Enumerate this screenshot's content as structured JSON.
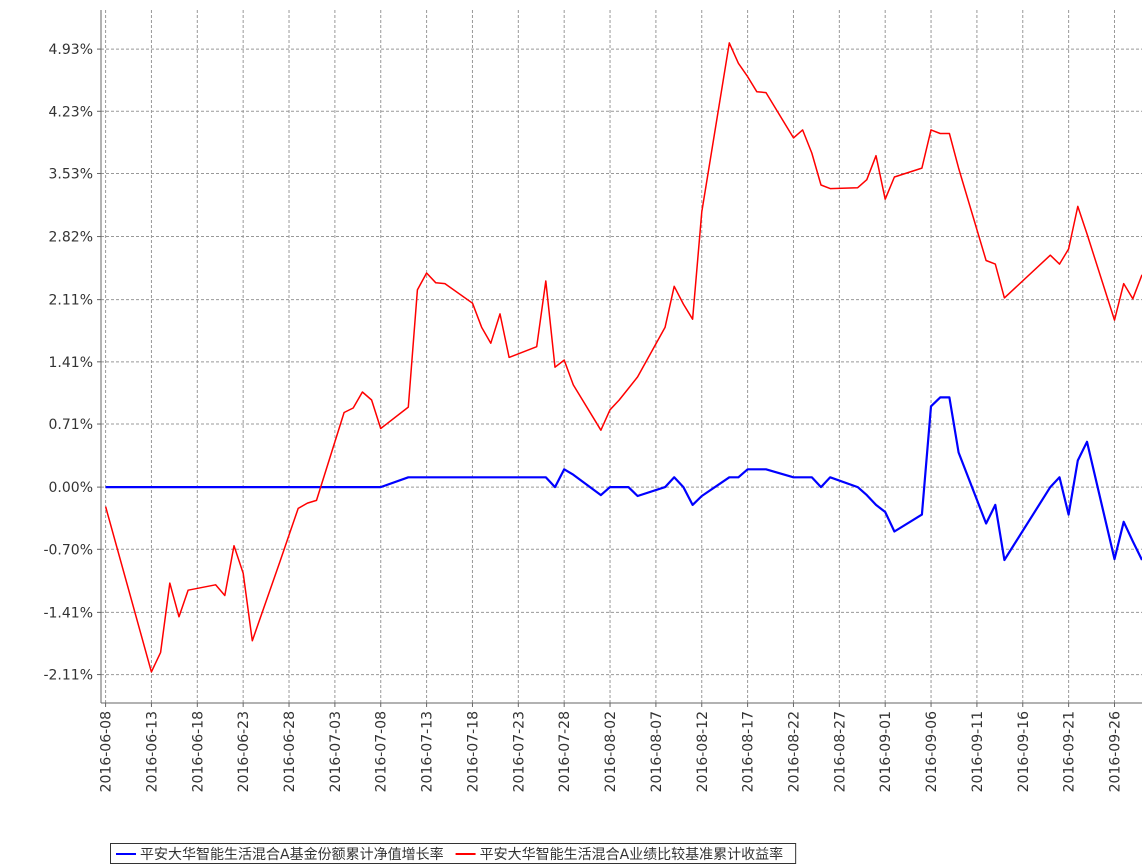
{
  "chart_data": {
    "type": "line",
    "x": [
      "2016-06-08",
      "2016-06-13",
      "2016-06-14",
      "2016-06-15",
      "2016-06-16",
      "2016-06-17",
      "2016-06-20",
      "2016-06-21",
      "2016-06-22",
      "2016-06-23",
      "2016-06-24",
      "2016-06-27",
      "2016-06-28",
      "2016-06-29",
      "2016-06-30",
      "2016-07-01",
      "2016-07-04",
      "2016-07-05",
      "2016-07-06",
      "2016-07-07",
      "2016-07-08",
      "2016-07-11",
      "2016-07-12",
      "2016-07-13",
      "2016-07-14",
      "2016-07-15",
      "2016-07-18",
      "2016-07-19",
      "2016-07-20",
      "2016-07-21",
      "2016-07-22",
      "2016-07-25",
      "2016-07-26",
      "2016-07-27",
      "2016-07-28",
      "2016-07-29",
      "2016-08-01",
      "2016-08-02",
      "2016-08-03",
      "2016-08-04",
      "2016-08-05",
      "2016-08-08",
      "2016-08-09",
      "2016-08-10",
      "2016-08-11",
      "2016-08-12",
      "2016-08-15",
      "2016-08-16",
      "2016-08-17",
      "2016-08-18",
      "2016-08-19",
      "2016-08-22",
      "2016-08-23",
      "2016-08-24",
      "2016-08-25",
      "2016-08-26",
      "2016-08-29",
      "2016-08-30",
      "2016-08-31",
      "2016-09-01",
      "2016-09-02",
      "2016-09-05",
      "2016-09-06",
      "2016-09-07",
      "2016-09-08",
      "2016-09-09",
      "2016-09-12",
      "2016-09-13",
      "2016-09-14",
      "2016-09-19",
      "2016-09-20",
      "2016-09-21",
      "2016-09-22",
      "2016-09-23",
      "2016-09-26",
      "2016-09-27",
      "2016-09-28",
      "2016-09-29"
    ],
    "series": [
      {
        "name": "平安大华智能生活混合A基金份额累计净值增长率",
        "color": "#0000ff",
        "values": [
          0,
          0,
          0,
          0,
          0,
          0,
          0,
          0,
          0,
          0,
          0,
          0,
          0,
          0,
          0,
          0,
          0,
          0,
          0,
          0,
          0,
          0.11,
          0.11,
          0.11,
          0.11,
          0.11,
          0.11,
          0.11,
          0.11,
          0.11,
          0.11,
          0.11,
          0.11,
          0,
          0.2,
          0.14,
          -0.09,
          0,
          0,
          0,
          -0.1,
          0,
          0.11,
          0,
          -0.2,
          -0.1,
          0.11,
          0.11,
          0.2,
          0.2,
          0.2,
          0.11,
          0.11,
          0.11,
          0,
          0.11,
          0,
          -0.09,
          -0.2,
          -0.28,
          -0.5,
          -0.31,
          0.91,
          1.01,
          1.01,
          0.39,
          -0.41,
          -0.2,
          -0.82,
          0,
          0.11,
          -0.31,
          0.3,
          0.51,
          -0.81,
          -0.39,
          -0.61,
          -0.82
        ]
      },
      {
        "name": "平安大华智能生活混合A业绩比较基准累计收益率",
        "color": "#ff0000",
        "values": [
          -0.22,
          -2.08,
          -1.86,
          -1.08,
          -1.46,
          -1.16,
          -1.1,
          -1.22,
          -0.66,
          -0.97,
          -1.73,
          -0.84,
          -0.54,
          -0.24,
          -0.18,
          -0.15,
          0.84,
          0.89,
          1.07,
          0.98,
          0.66,
          0.9,
          2.22,
          2.41,
          2.3,
          2.29,
          2.07,
          1.8,
          1.62,
          1.95,
          1.46,
          1.58,
          2.32,
          1.35,
          1.43,
          1.15,
          0.64,
          0.87,
          0.98,
          1.11,
          1.24,
          1.8,
          2.26,
          2.06,
          1.89,
          3.1,
          5.0,
          4.77,
          4.62,
          4.45,
          4.44,
          3.93,
          4.02,
          3.76,
          3.4,
          3.36,
          3.37,
          3.46,
          3.73,
          3.24,
          3.49,
          3.59,
          4.02,
          3.98,
          3.98,
          3.59,
          2.55,
          2.51,
          2.13,
          2.61,
          2.51,
          2.68,
          3.16,
          2.85,
          1.88,
          2.29,
          2.12,
          2.39
        ]
      }
    ],
    "xlim": [
      "2016-06-07T12:00:00Z",
      "2016-09-29T00:00:00Z"
    ],
    "xticks": [
      "2016-06-08",
      "2016-06-13",
      "2016-06-18",
      "2016-06-23",
      "2016-06-28",
      "2016-07-03",
      "2016-07-08",
      "2016-07-13",
      "2016-07-18",
      "2016-07-23",
      "2016-07-28",
      "2016-08-02",
      "2016-08-07",
      "2016-08-12",
      "2016-08-17",
      "2016-08-22",
      "2016-08-27",
      "2016-09-01",
      "2016-09-06",
      "2016-09-11",
      "2016-09-16",
      "2016-09-21",
      "2016-09-26"
    ],
    "ylim": [
      -2.43,
      5.37
    ],
    "yticks": [
      {
        "value": -2.11,
        "label": "-2.11%"
      },
      {
        "value": -1.41,
        "label": "-1.41%"
      },
      {
        "value": -0.7,
        "label": "-0.70%"
      },
      {
        "value": 0,
        "label": "0.00%"
      },
      {
        "value": 0.71,
        "label": "0.71%"
      },
      {
        "value": 1.41,
        "label": "1.41%"
      },
      {
        "value": 2.11,
        "label": "2.11%"
      },
      {
        "value": 2.82,
        "label": "2.82%"
      },
      {
        "value": 3.53,
        "label": "3.53%"
      },
      {
        "value": 4.23,
        "label": "4.23%"
      },
      {
        "value": 4.93,
        "label": "4.93%"
      }
    ],
    "grid": true,
    "legend": "bottom"
  }
}
